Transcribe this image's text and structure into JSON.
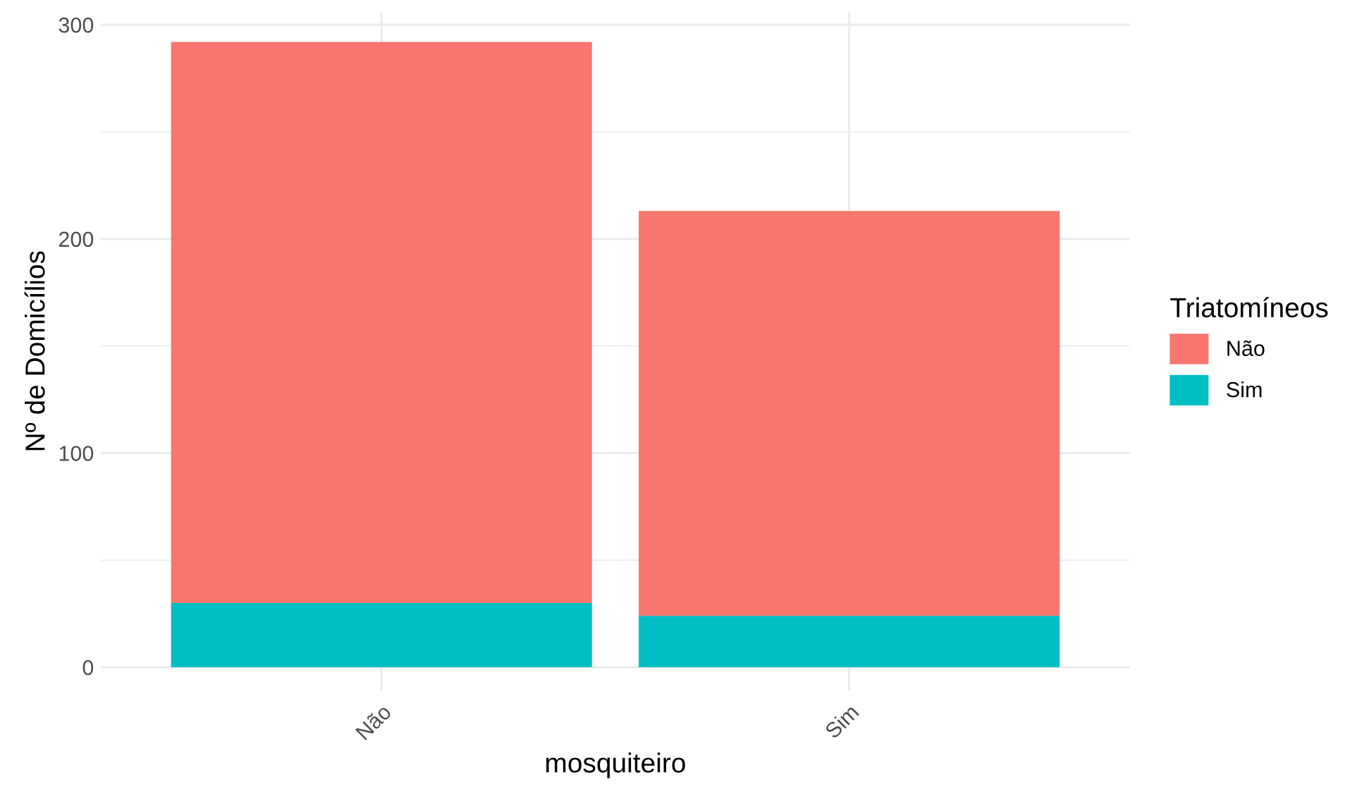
{
  "chart_data": {
    "type": "bar",
    "stacked": true,
    "xlabel": "mosquiteiro",
    "ylabel": "Nº de Domicílios",
    "legend_title": "Triatomíneos",
    "categories": [
      "Não",
      "Sim"
    ],
    "series": [
      {
        "name": "Sim",
        "color": "#00bfc4",
        "values": [
          30,
          24
        ]
      },
      {
        "name": "Não",
        "color": "#f8766d",
        "values": [
          262,
          189
        ]
      }
    ],
    "ylim": [
      -11,
      306
    ],
    "yticks": [
      0,
      {
        "value": 50,
        "label": null
      },
      100,
      {
        "value": 150,
        "label": null
      },
      200,
      {
        "value": 250,
        "label": null
      },
      300
    ],
    "grid": true,
    "legend": "right"
  }
}
